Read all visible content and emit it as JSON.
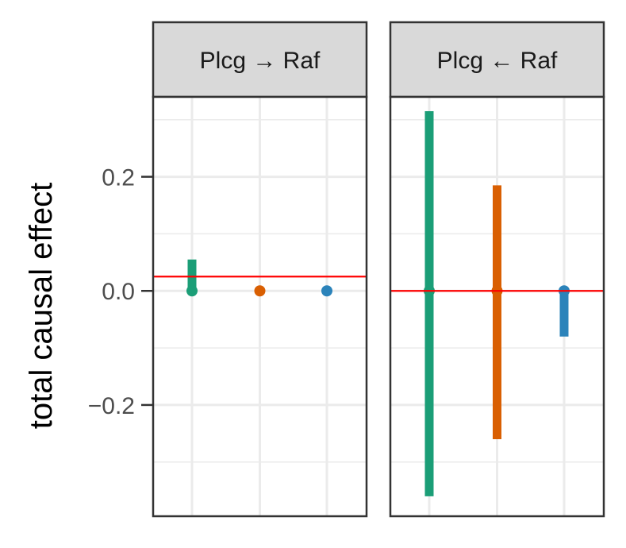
{
  "chart_data": {
    "type": "errorbar",
    "ylabel": "total causal effect",
    "ylim": [
      -0.395,
      0.34
    ],
    "y_ticks": [
      -0.2,
      0.0,
      0.2
    ],
    "y_tick_labels": [
      "−0.2",
      "0.0",
      "0.2"
    ],
    "grid": true,
    "colors": [
      "#1b9e77",
      "#d95f02",
      "#2b83ba"
    ],
    "reference_line_color": "#ff0000",
    "panels": [
      {
        "title": "Plcg → Raf",
        "reference_line": 0.025,
        "series": [
          {
            "point": 0.0,
            "low": 0.0,
            "high": 0.055
          },
          {
            "point": 0.0,
            "low": 0.0,
            "high": 0.0
          },
          {
            "point": 0.0,
            "low": 0.0,
            "high": 0.0
          }
        ]
      },
      {
        "title": "Plcg ← Raf",
        "reference_line": 0.0,
        "series": [
          {
            "point": 0.0,
            "low": -0.36,
            "high": 0.315
          },
          {
            "point": 0.0,
            "low": -0.26,
            "high": 0.185
          },
          {
            "point": 0.0,
            "low": -0.08,
            "high": 0.0
          }
        ]
      }
    ]
  }
}
